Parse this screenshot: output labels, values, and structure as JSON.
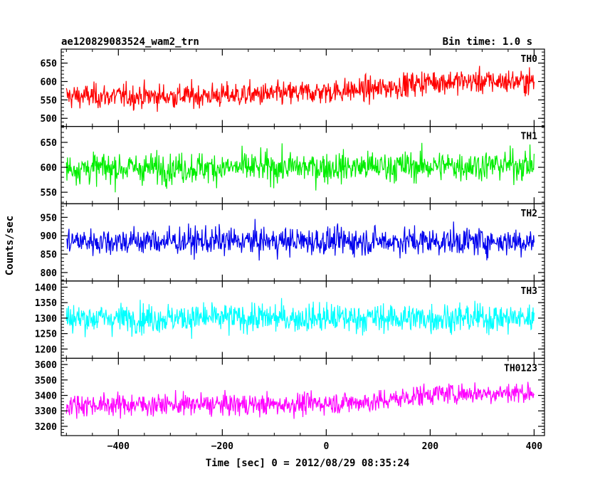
{
  "chart_data": {
    "type": "line",
    "title": "ae120829083524_wam2_trn",
    "subtitle": "Bin time: 1.0 s",
    "xlabel": "Time [sec] 0 = 2012/08/29 08:35:24",
    "ylabel": "Counts/sec",
    "xlim": [
      -510,
      420
    ],
    "x_ticks": [
      -400,
      -200,
      0,
      200,
      400
    ],
    "x_tick_labels": [
      "−400",
      "−200",
      "0",
      "200",
      "400"
    ],
    "x_range": [
      -500,
      400
    ],
    "bin_seconds": 1.0,
    "grid": false,
    "panels": [
      {
        "name": "TH0",
        "color": "#ff0000",
        "ylim": [
          478,
          688
        ],
        "y_ticks": [
          500,
          550,
          600,
          650
        ],
        "y_tick_labels": [
          "500",
          "550",
          "600",
          "650"
        ],
        "trend_x": [
          -500,
          -300,
          -100,
          100,
          200,
          400
        ],
        "trend_y": [
          560,
          560,
          565,
          580,
          600,
          600
        ],
        "noise": 28
      },
      {
        "name": "TH1",
        "color": "#00ee00",
        "ylim": [
          527,
          682
        ],
        "y_ticks": [
          550,
          600,
          650
        ],
        "y_tick_labels": [
          "550",
          "600",
          "650"
        ],
        "trend_x": [
          -500,
          0,
          400
        ],
        "trend_y": [
          598,
          600,
          605
        ],
        "noise": 26
      },
      {
        "name": "TH2",
        "color": "#0000ee",
        "ylim": [
          777,
          987
        ],
        "y_ticks": [
          800,
          850,
          900,
          950
        ],
        "y_tick_labels": [
          "800",
          "850",
          "900",
          "950"
        ],
        "trend_x": [
          -500,
          400
        ],
        "trend_y": [
          885,
          885
        ],
        "noise": 32
      },
      {
        "name": "TH3",
        "color": "#00ffff",
        "ylim": [
          1170,
          1420
        ],
        "y_ticks": [
          1200,
          1250,
          1300,
          1350,
          1400
        ],
        "y_tick_labels": [
          "1200",
          "1250",
          "1300",
          "1350",
          "1400"
        ],
        "trend_x": [
          -500,
          400
        ],
        "trend_y": [
          1300,
          1300
        ],
        "noise": 40
      },
      {
        "name": "TH0123",
        "color": "#ff00ff",
        "ylim": [
          3140,
          3640
        ],
        "y_ticks": [
          3200,
          3300,
          3400,
          3500,
          3600
        ],
        "y_tick_labels": [
          "3200",
          "3300",
          "3400",
          "3500",
          "3600"
        ],
        "trend_x": [
          -500,
          -100,
          100,
          200,
          400
        ],
        "trend_y": [
          3340,
          3340,
          3360,
          3410,
          3420
        ],
        "noise": 60
      }
    ]
  }
}
